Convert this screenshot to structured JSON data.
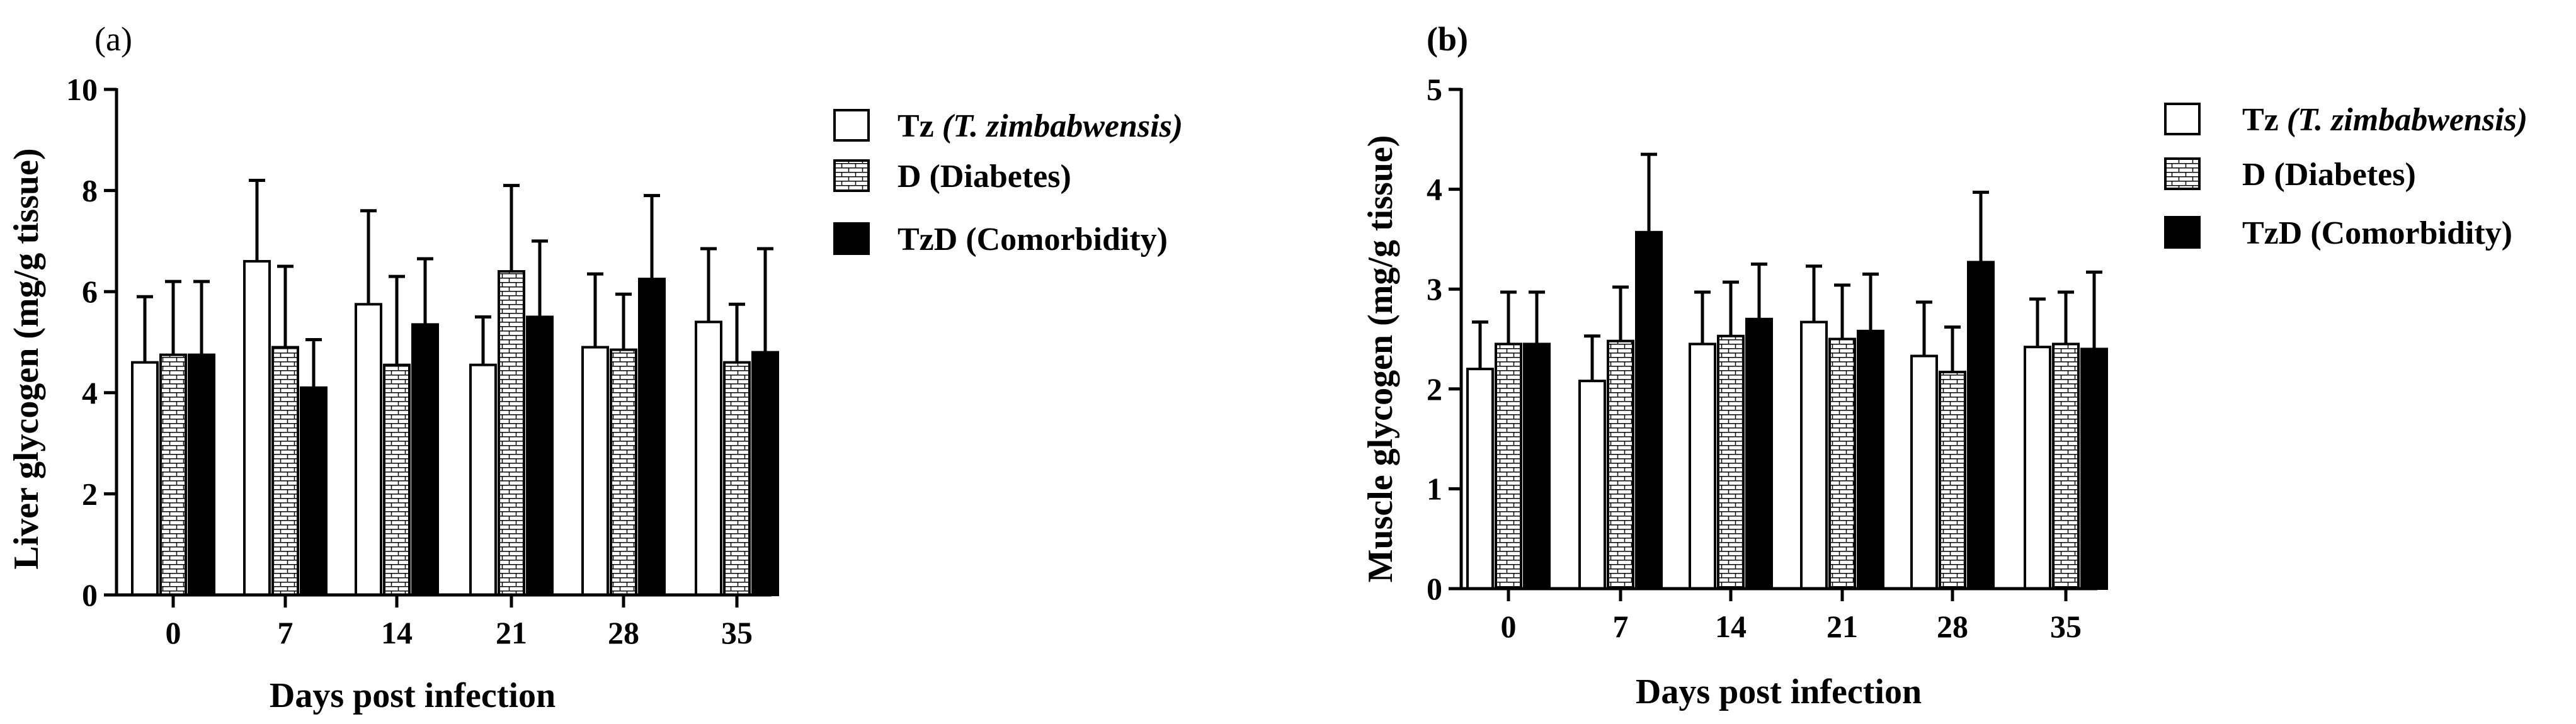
{
  "figure": {
    "legend": [
      {
        "key": "Tz",
        "label": "Tz",
        "label_italic": "(T. zimbabwensis)",
        "pattern": "white"
      },
      {
        "key": "D",
        "label": "D (Diabetes)",
        "label_italic": "",
        "pattern": "brick"
      },
      {
        "key": "TzD",
        "label": "TzD (Comorbidity)",
        "label_italic": "",
        "pattern": "black"
      }
    ]
  },
  "chart_data": [
    {
      "type": "bar",
      "panel_label": "(a)",
      "title": "",
      "xlabel": "Days post infection",
      "ylabel": "Liver glycogen (mg/g tissue)",
      "ylim": [
        0,
        10
      ],
      "yticks": [
        0,
        2,
        4,
        6,
        8,
        10
      ],
      "categories": [
        "0",
        "7",
        "14",
        "21",
        "28",
        "35"
      ],
      "series": [
        {
          "name": "Tz (T. zimbabwensis)",
          "values": [
            4.6,
            6.6,
            5.75,
            4.55,
            4.9,
            5.4
          ],
          "errors": [
            1.3,
            1.6,
            1.85,
            0.95,
            1.45,
            1.45
          ]
        },
        {
          "name": "D (Diabetes)",
          "values": [
            4.75,
            4.9,
            4.55,
            6.4,
            4.85,
            4.6
          ],
          "errors": [
            1.45,
            1.6,
            1.75,
            1.7,
            1.1,
            1.15
          ]
        },
        {
          "name": "TzD (Comorbidity)",
          "values": [
            4.75,
            4.1,
            5.35,
            5.5,
            6.25,
            4.8
          ],
          "errors": [
            1.45,
            0.95,
            1.3,
            1.5,
            1.65,
            2.05
          ]
        }
      ],
      "legend_position": "right"
    },
    {
      "type": "bar",
      "panel_label": "(b)",
      "title": "",
      "xlabel": "Days post infection",
      "ylabel": "Muscle glycogen (mg/g tissue)",
      "ylim": [
        0,
        5
      ],
      "yticks": [
        0,
        1,
        2,
        3,
        4,
        5
      ],
      "categories": [
        "0",
        "7",
        "14",
        "21",
        "28",
        "35"
      ],
      "series": [
        {
          "name": "Tz (T. zimbabwensis)",
          "values": [
            2.2,
            2.08,
            2.45,
            2.67,
            2.33,
            2.42
          ],
          "errors": [
            0.47,
            0.45,
            0.52,
            0.56,
            0.54,
            0.48
          ]
        },
        {
          "name": "D (Diabetes)",
          "values": [
            2.45,
            2.48,
            2.53,
            2.5,
            2.17,
            2.45
          ],
          "errors": [
            0.52,
            0.54,
            0.54,
            0.54,
            0.45,
            0.52
          ]
        },
        {
          "name": "TzD (Comorbidity)",
          "values": [
            2.45,
            3.57,
            2.7,
            2.58,
            3.27,
            2.4
          ],
          "errors": [
            0.52,
            0.78,
            0.55,
            0.57,
            0.7,
            0.77
          ]
        }
      ],
      "legend_position": "right"
    }
  ]
}
